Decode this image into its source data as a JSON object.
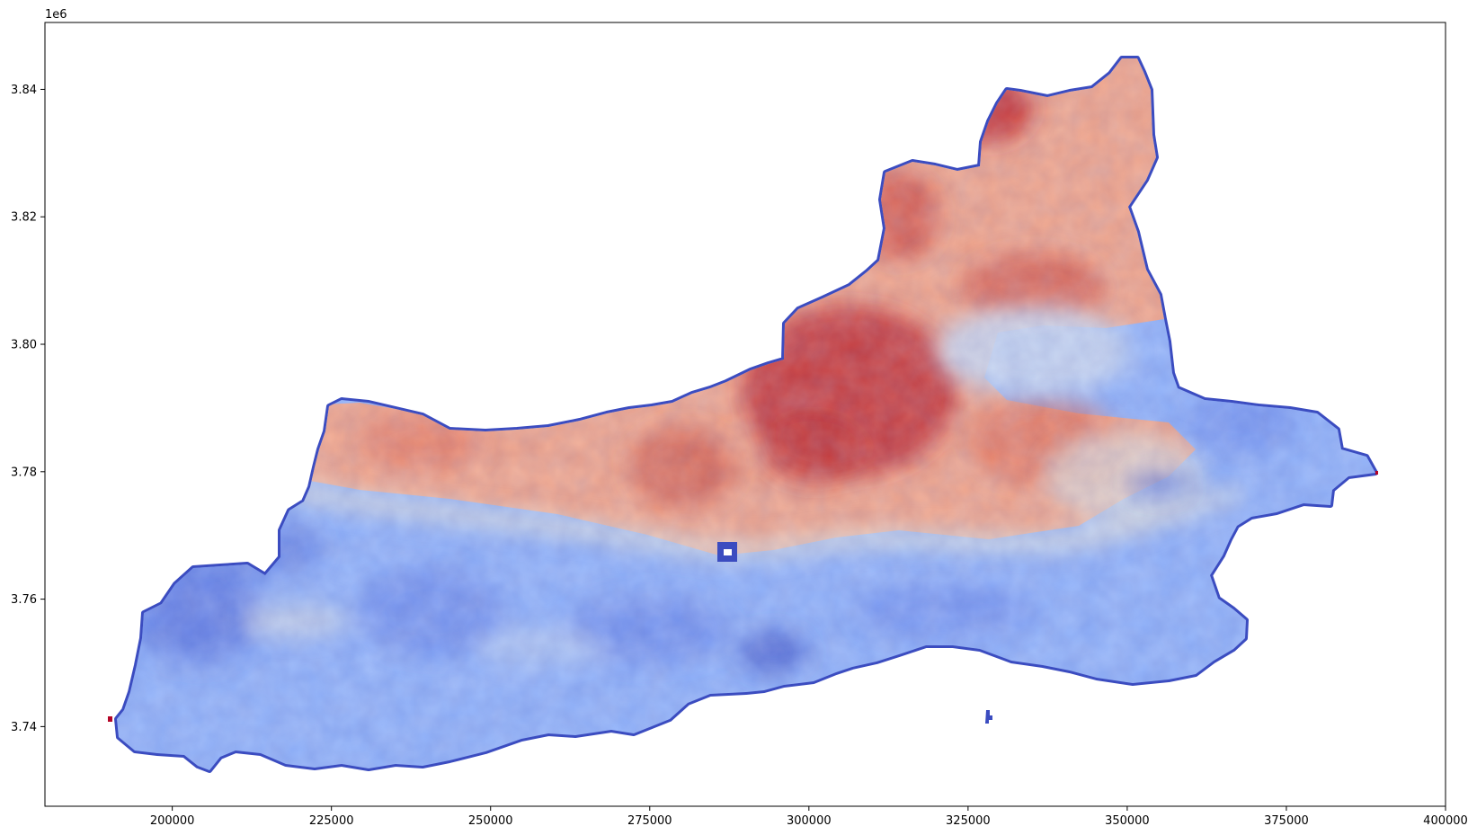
{
  "figure": {
    "offset_label": "1e6",
    "x_axis": {
      "range": [
        180000,
        400000
      ],
      "ticks": [
        {
          "value": 200000,
          "label": "200000"
        },
        {
          "value": 225000,
          "label": "225000"
        },
        {
          "value": 250000,
          "label": "250000"
        },
        {
          "value": 275000,
          "label": "275000"
        },
        {
          "value": 300000,
          "label": "300000"
        },
        {
          "value": 325000,
          "label": "325000"
        },
        {
          "value": 350000,
          "label": "350000"
        },
        {
          "value": 375000,
          "label": "375000"
        },
        {
          "value": 400000,
          "label": "400000"
        }
      ]
    },
    "y_axis": {
      "range": [
        3.7275,
        3.8505
      ],
      "ticks": [
        {
          "value": 3.74,
          "label": "3.74"
        },
        {
          "value": 3.76,
          "label": "3.76"
        },
        {
          "value": 3.78,
          "label": "3.78"
        },
        {
          "value": 3.8,
          "label": "3.80"
        },
        {
          "value": 3.82,
          "label": "3.82"
        },
        {
          "value": 3.84,
          "label": "3.84"
        }
      ]
    },
    "colormap": "coolwarm",
    "colors": {
      "cold_dark": "#3b4cc0",
      "cold_mid": "#6f92f3",
      "cold_light": "#aac7fd",
      "neutral": "#dddcdc",
      "warm_light": "#f7b89c",
      "warm_mid": "#e7745b",
      "warm_dark": "#b40426",
      "edge": "#3b4cc0"
    }
  }
}
